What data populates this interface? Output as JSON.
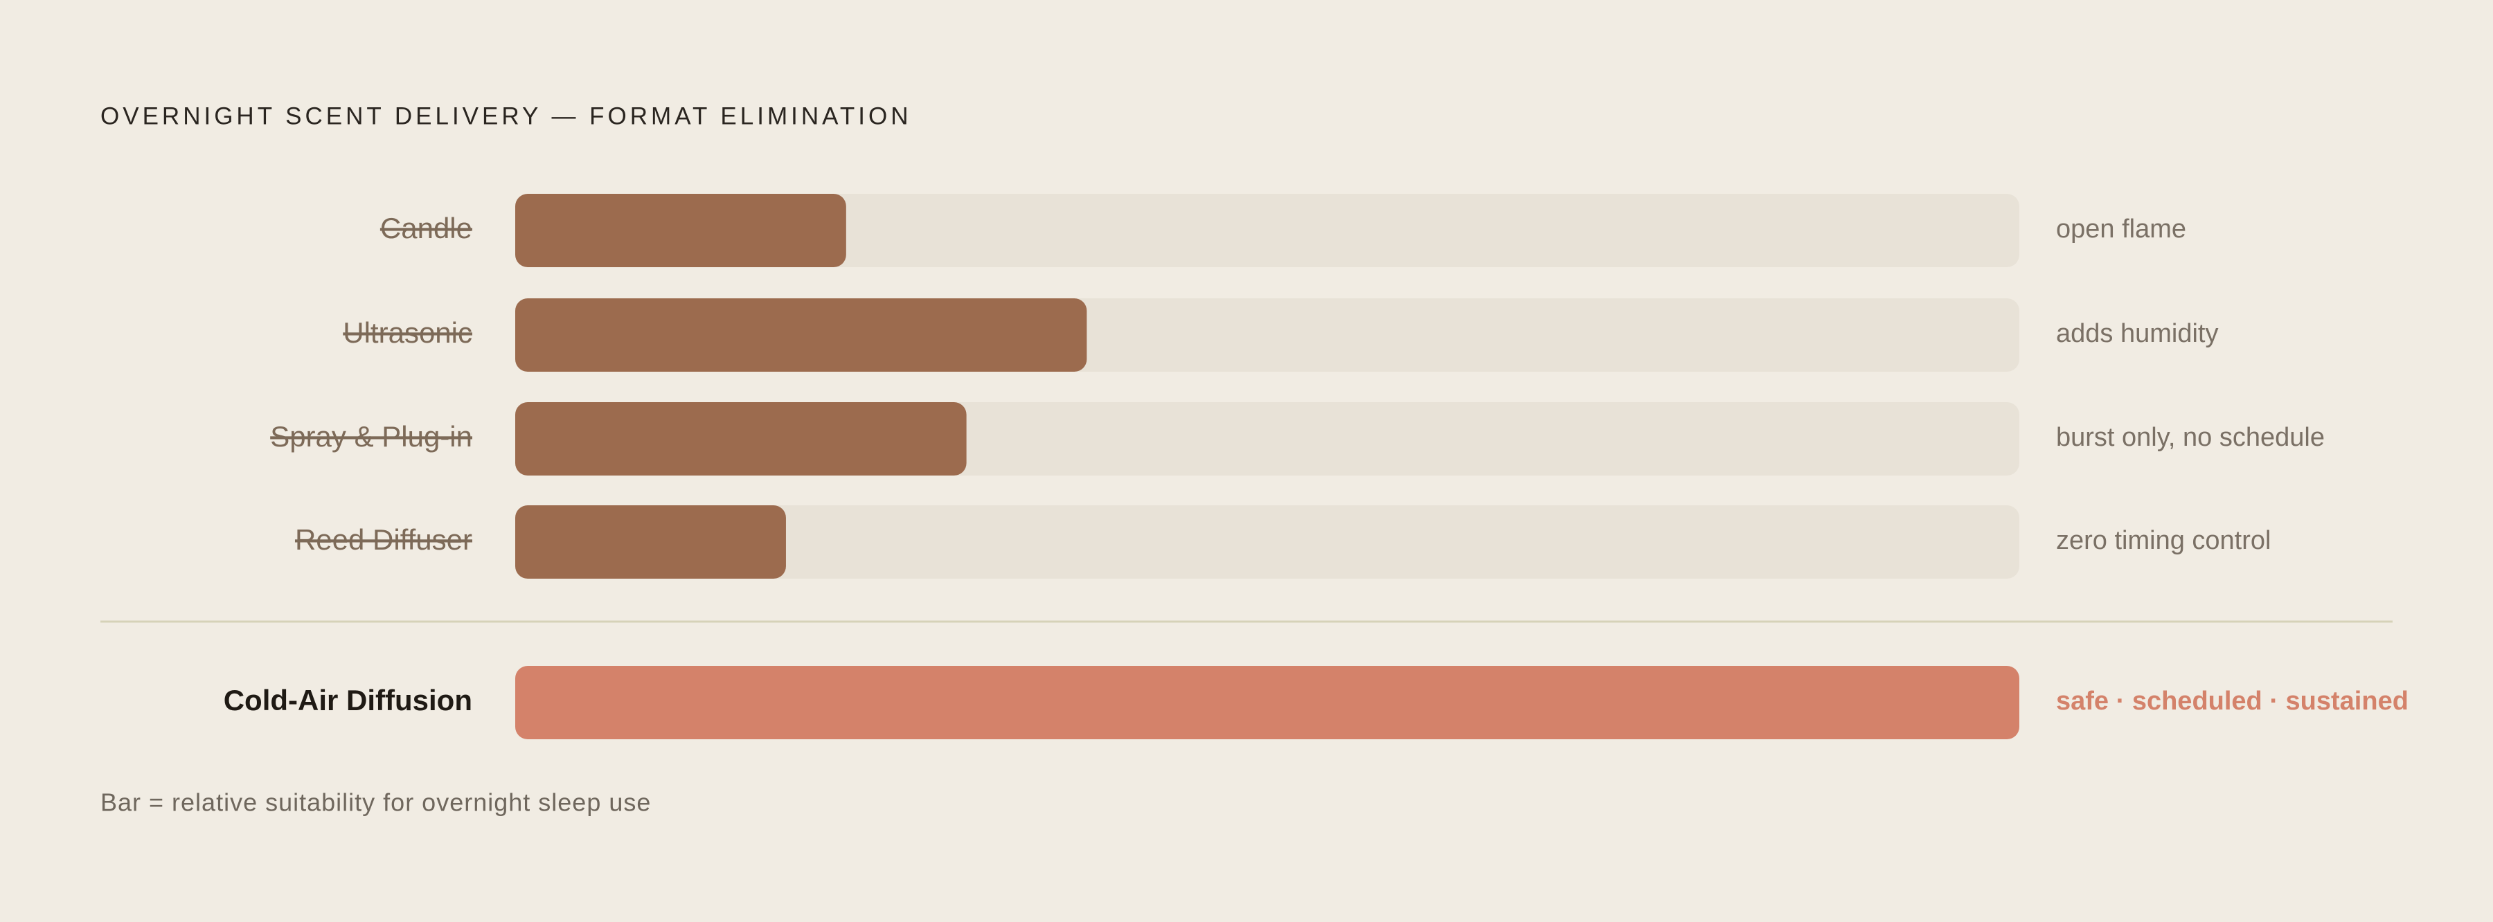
{
  "chart_data": {
    "type": "bar",
    "title": "OVERNIGHT SCENT DELIVERY — FORMAT ELIMINATION",
    "categories": [
      "Candle",
      "Ultrasonic",
      "Spray & Plug-in",
      "Reed Diffuser",
      "Cold-Air Diffusion"
    ],
    "values": [
      22,
      38,
      30,
      18,
      100
    ],
    "notes": [
      "open flame",
      "adds humidity",
      "burst only, no schedule",
      "zero timing control",
      "safe · scheduled · sustained"
    ],
    "eliminated": [
      true,
      true,
      true,
      true,
      false
    ],
    "colors": [
      "#9c6b4e",
      "#9c6b4e",
      "#9c6b4e",
      "#9c6b4e",
      "#d4826a"
    ],
    "xlim": [
      0,
      100
    ],
    "caption": "Bar = relative suitability for overnight sleep use"
  }
}
